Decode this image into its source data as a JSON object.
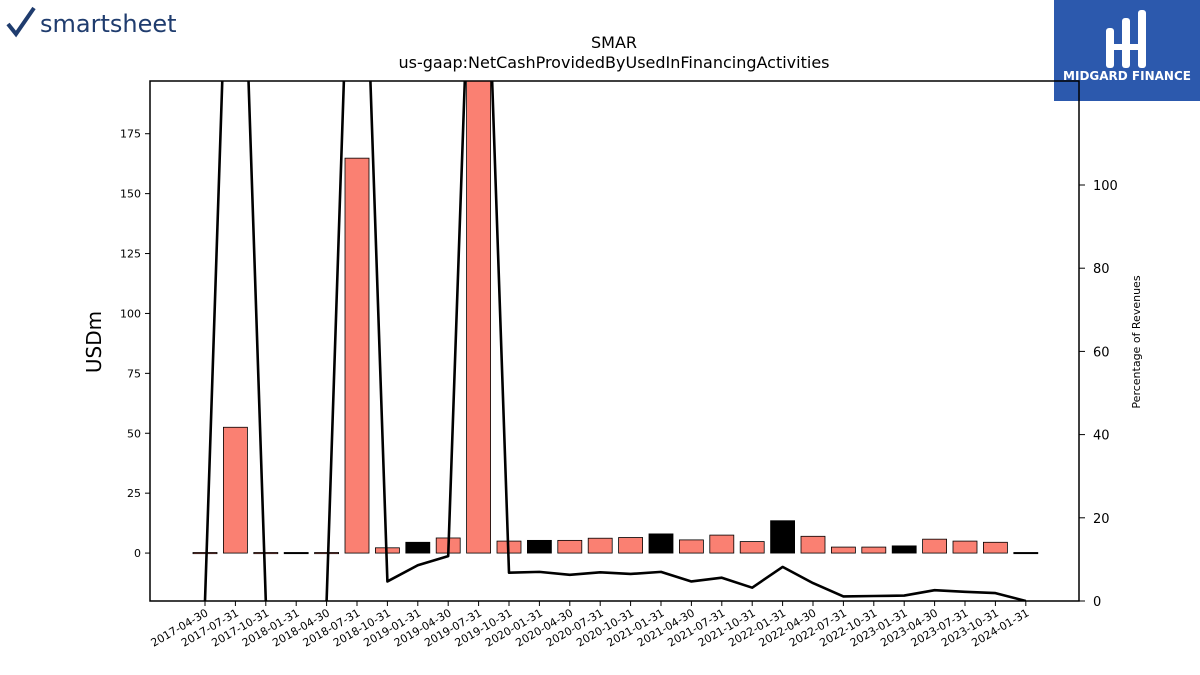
{
  "branding": {
    "left_logo_text": "smartsheet",
    "right_logo_text": "MIDGARD FINANCE",
    "right_logo_color": "#2c59ad"
  },
  "chart_data": {
    "type": "bar",
    "title": "SMAR",
    "subtitle": "us-gaap:NetCashProvidedByUsedInFinancingActivities",
    "ylabel": "USDm",
    "y2label": "Percentage of Revenues",
    "ylim": [
      -20,
      197
    ],
    "y2lim": [
      0,
      125
    ],
    "yticks": [
      0,
      25,
      50,
      75,
      100,
      125,
      150,
      175
    ],
    "y2ticks": [
      0,
      20,
      40,
      60,
      80,
      100
    ],
    "grid": false,
    "categories": [
      "2017-04-30",
      "2017-07-31",
      "2017-10-31",
      "2018-01-31",
      "2018-04-30",
      "2018-07-31",
      "2018-10-31",
      "2019-01-31",
      "2019-04-30",
      "2019-07-31",
      "2019-10-31",
      "2020-01-31",
      "2020-04-30",
      "2020-07-31",
      "2020-10-31",
      "2021-01-31",
      "2021-04-30",
      "2021-07-31",
      "2021-10-31",
      "2022-01-31",
      "2022-04-30",
      "2022-07-31",
      "2022-10-31",
      "2023-01-31",
      "2023-04-30",
      "2023-07-31",
      "2023-10-31",
      "2024-01-31"
    ],
    "bar_series": {
      "name": "USDm",
      "values": [
        0.2,
        52.5,
        0.2,
        -0.5,
        0.2,
        164.8,
        2.2,
        4.5,
        6.3,
        198,
        5.0,
        5.3,
        5.3,
        6.2,
        6.5,
        8.0,
        5.5,
        7.5,
        4.8,
        13.5,
        7.0,
        2.5,
        2.5,
        3.0,
        5.8,
        5.0,
        4.5,
        -0.5
      ],
      "colors": [
        "#fa8072",
        "#fa8072",
        "#fa8072",
        "#000000",
        "#fa8072",
        "#fa8072",
        "#fa8072",
        "#000000",
        "#fa8072",
        "#fa8072",
        "#fa8072",
        "#000000",
        "#fa8072",
        "#fa8072",
        "#fa8072",
        "#000000",
        "#fa8072",
        "#fa8072",
        "#fa8072",
        "#000000",
        "#fa8072",
        "#fa8072",
        "#fa8072",
        "#000000",
        "#fa8072",
        "#fa8072",
        "#fa8072",
        "#000000"
      ]
    },
    "line_series": {
      "name": "Percentage of Revenues",
      "axis": "right",
      "values": [
        0,
        220,
        0,
        -5,
        0,
        220,
        4.7,
        8.6,
        10.8,
        220,
        6.8,
        7.0,
        6.3,
        6.9,
        6.5,
        7.0,
        4.7,
        5.6,
        3.2,
        8.2,
        4.3,
        1.1,
        1.2,
        1.3,
        2.6,
        2.2,
        1.9,
        0
      ]
    },
    "colors": {
      "positive": "#fa8072",
      "q4": "#000000",
      "line": "#000000"
    }
  }
}
